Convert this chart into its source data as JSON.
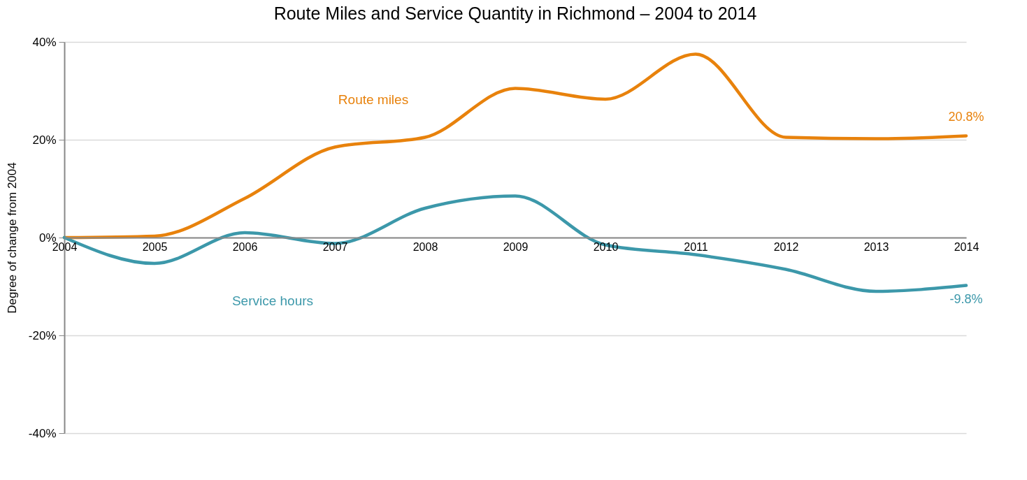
{
  "chart_data": {
    "type": "line",
    "title": "Route Miles and Service Quantity in Richmond – 2004 to 2014",
    "ylabel": "Degree of change from 2004",
    "categories": [
      "2004",
      "2005",
      "2006",
      "2007",
      "2008",
      "2009",
      "2010",
      "2011",
      "2012",
      "2013",
      "2014"
    ],
    "series": [
      {
        "name": "Route miles",
        "color": "#e8820c",
        "values": [
          0,
          0.3,
          8,
          18.5,
          20.5,
          30.5,
          28.3,
          37.5,
          20.5,
          20.2,
          20.8
        ],
        "value_labels": [
          null,
          null,
          null,
          null,
          null,
          null,
          null,
          null,
          null,
          null,
          "20.8%"
        ]
      },
      {
        "name": "Service hours",
        "color": "#3c98aa",
        "values": [
          0,
          -5.3,
          1,
          -1.2,
          6,
          8.5,
          -1.5,
          -3.5,
          -6.5,
          -11,
          -9.8
        ],
        "value_labels": [
          null,
          null,
          null,
          null,
          null,
          null,
          null,
          null,
          null,
          null,
          "-9.8%"
        ]
      }
    ],
    "ylim": [
      -40,
      40
    ],
    "yticks": [
      {
        "value": -40,
        "label": "-40%"
      },
      {
        "value": -20,
        "label": "-20%"
      },
      {
        "value": 0,
        "label": "0%"
      },
      {
        "value": 20,
        "label": "20%"
      },
      {
        "value": 40,
        "label": "40%"
      }
    ],
    "grid": "y",
    "legend": false
  }
}
